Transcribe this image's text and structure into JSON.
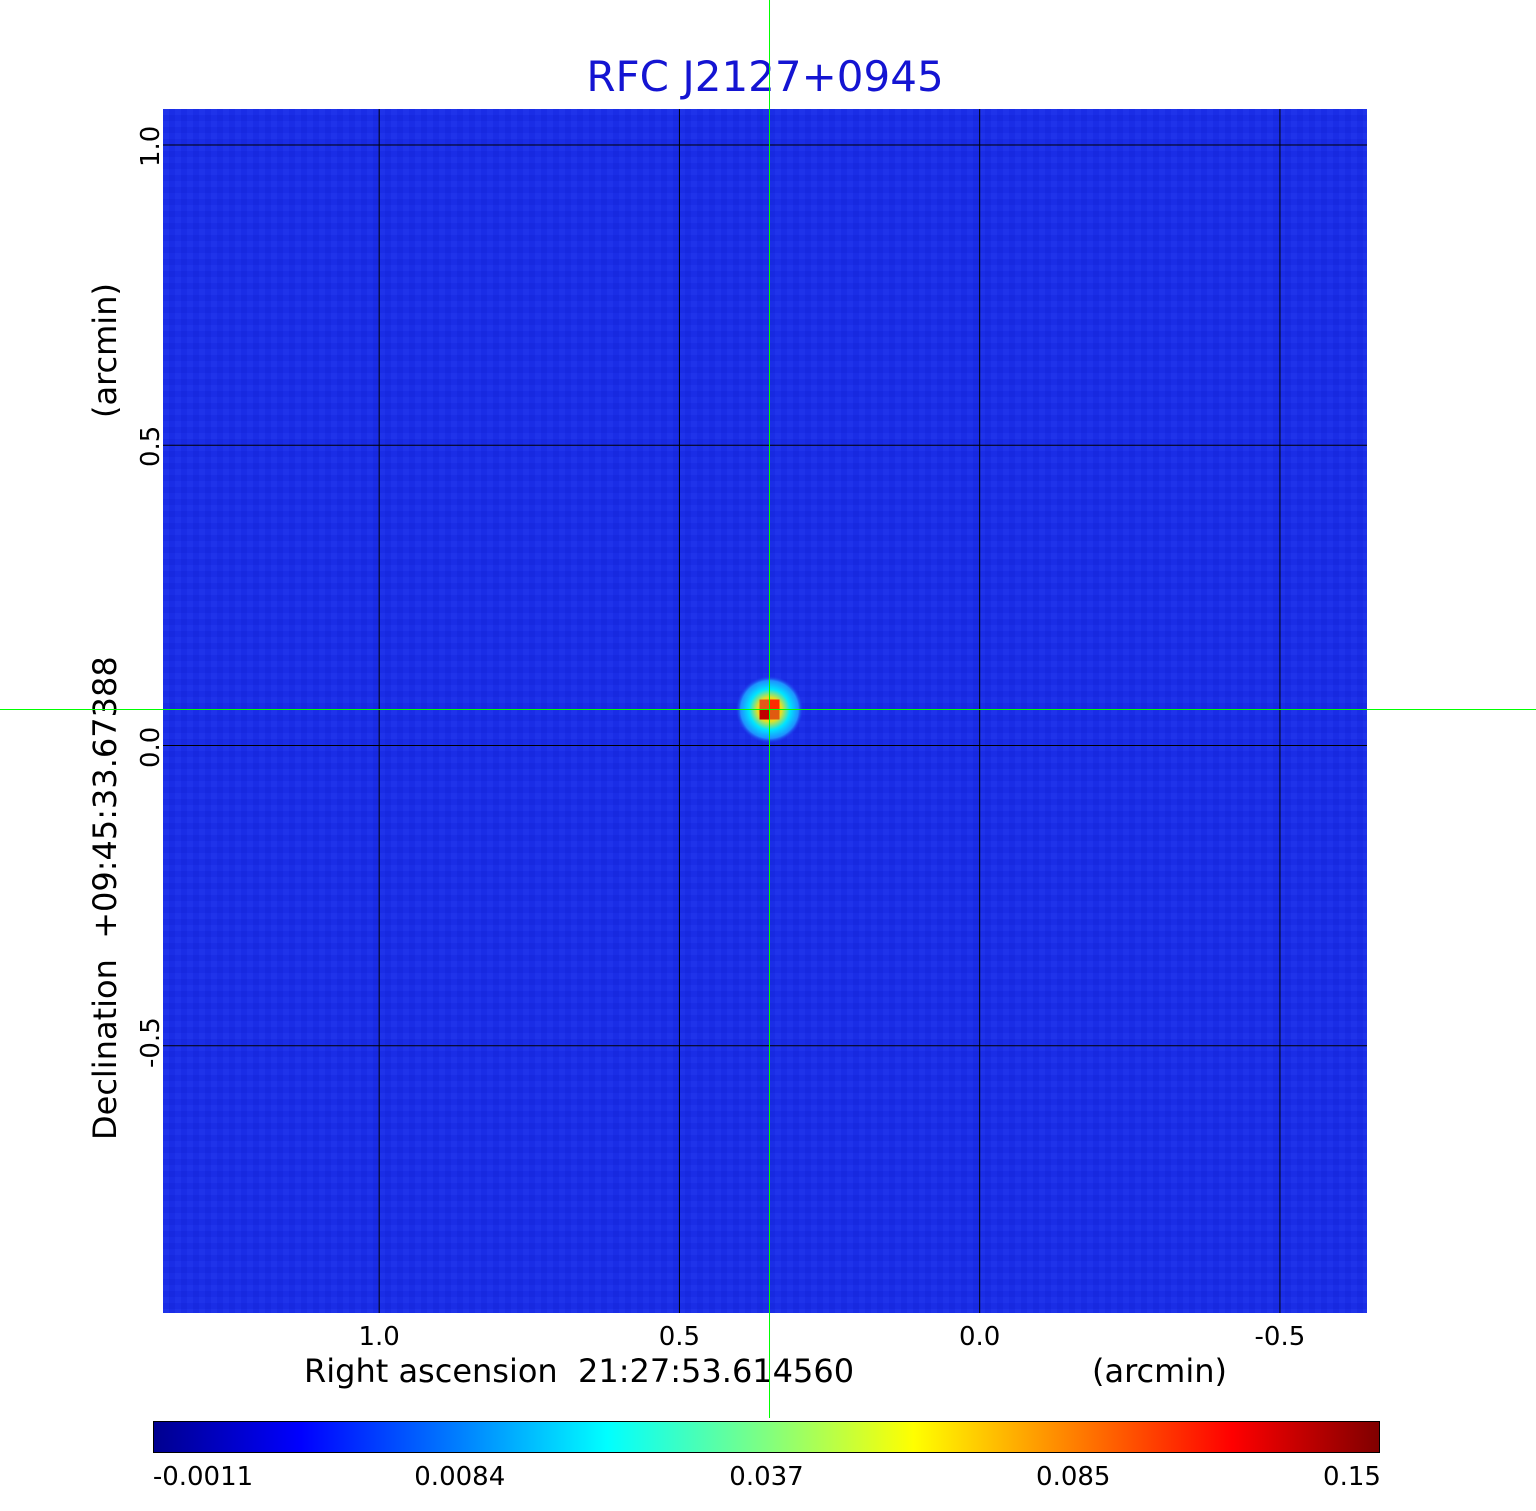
{
  "chart_data": {
    "type": "heatmap",
    "title": "RFC J2127+0945",
    "xlabel": "Right ascension  21:27:53.614560",
    "xunit": "(arcmin)",
    "ylabel": "Declination  +09:45:33.67388",
    "yunit": "(arcmin)",
    "x_ticks": [
      "1.0",
      "0.5",
      "0.0",
      "-0.5"
    ],
    "x_tick_values": [
      1.0,
      0.5,
      0.0,
      -0.5
    ],
    "y_ticks": [
      "1.0",
      "0.5",
      "0.0",
      "-0.5"
    ],
    "y_tick_values": [
      1.0,
      0.5,
      0.0,
      -0.5
    ],
    "xlim": [
      1.36,
      -0.645
    ],
    "ylim": [
      -0.945,
      1.06
    ],
    "grid": true,
    "source": {
      "name": "peak",
      "x": 0.35,
      "y": 0.06,
      "peak_value": 0.15
    },
    "colorbar": {
      "ticks": [
        "-0.0011",
        "0.0084",
        "0.037",
        "0.085",
        "0.15"
      ],
      "tick_fractions": [
        0.0,
        0.25,
        0.5,
        0.75,
        1.0
      ],
      "colormap": "jet"
    },
    "crosshair_color": "#00ff00",
    "title_color": "#1414d2"
  }
}
